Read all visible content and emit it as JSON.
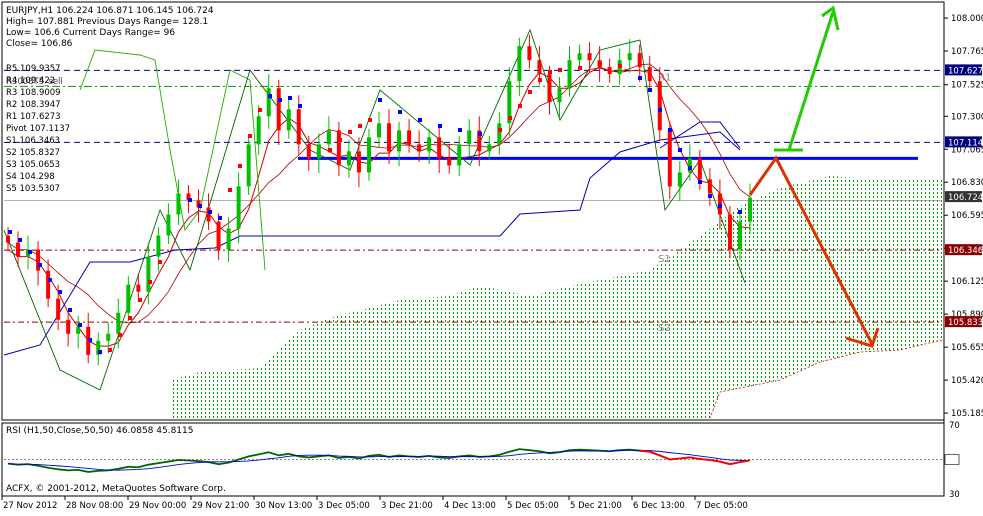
{
  "header": {
    "symbol_line": "EURJPY,H1  106.224 106.871 106.145 106.724",
    "high_line": "High= 107.881   Previous Days Range= 128.1",
    "low_line": "Low= 106.6    Current Days Range= 96",
    "close_line": "Close= 106.86"
  },
  "pivots_box": [
    {
      "label": "R5 109.9357"
    },
    {
      "label": "R4 109.422"
    },
    {
      "label": "R3 108.9009"
    },
    {
      "label": "R2 108.3947"
    },
    {
      "label": "R1 107.6273"
    },
    {
      "label": "Pivot 107.1137"
    },
    {
      "label": "S1 106.3463"
    },
    {
      "label": "S2 105.8327"
    },
    {
      "label": "S3 105.0653"
    },
    {
      "label": "S4 104.298"
    },
    {
      "label": "S5 103.5307"
    }
  ],
  "overlap_label": "R3008T5_sell",
  "copyright": "ACFX, © 2001-2012, MetaQuotes Software Corp.",
  "rsi_header": "RSI (H1,50,Close,50,50) 46.0858 45.8115",
  "colors": {
    "bull_candle": "#00c000",
    "bear_candle": "#ff0000",
    "support_line": "#0000ff",
    "up_arrow": "#22cc00",
    "down_arrow": "#dd3300",
    "cloud": "#009900",
    "label_blue_bg": "#00007f",
    "label_red_bg": "#8b0000"
  },
  "chart_data": {
    "type": "candlestick",
    "symbol": "EURJPY",
    "timeframe": "H1",
    "ylim": [
      105.15,
      108.1
    ],
    "x_ticks": [
      "27 Nov 2012",
      "28 Nov 08:00",
      "29 Nov 00:00",
      "29 Nov 21:00",
      "30 Nov 13:00",
      "3 Dec 05:00",
      "3 Dec 21:00",
      "4 Dec 13:00",
      "5 Dec 05:00",
      "5 Dec 21:00",
      "6 Dec 13:00",
      "7 Dec 05:00"
    ],
    "y_ticks": [
      "108.000",
      "107.765",
      "107.525",
      "107.300",
      "107.065",
      "106.830",
      "106.595",
      "106.360",
      "106.125",
      "105.890",
      "105.655",
      "105.420",
      "105.185"
    ],
    "price_labels": [
      {
        "text": "107.627",
        "value": 107.627,
        "style": "blue"
      },
      {
        "text": "107.114",
        "value": 107.114,
        "style": "blue"
      },
      {
        "text": "106.724",
        "value": 106.724,
        "style": "dark"
      },
      {
        "text": "106.346",
        "value": 106.346,
        "style": "red"
      },
      {
        "text": "105.833",
        "value": 105.833,
        "style": "red"
      }
    ],
    "levels": [
      {
        "name": "R1",
        "value": 107.627
      },
      {
        "name": "Pivot",
        "value": 107.114
      },
      {
        "name": "S1",
        "value": 106.346
      },
      {
        "name": "S2",
        "value": 105.833
      }
    ],
    "level_labels": [
      "R1",
      "S1",
      "S2"
    ],
    "support_line_value": 107.0,
    "close_series": [
      106.4,
      106.3,
      106.35,
      106.2,
      106.0,
      105.85,
      105.75,
      105.8,
      105.6,
      105.7,
      105.75,
      105.9,
      106.1,
      106.05,
      106.3,
      106.45,
      106.6,
      106.75,
      106.7,
      106.65,
      106.55,
      106.35,
      106.5,
      106.8,
      107.1,
      107.3,
      107.5,
      107.2,
      107.35,
      107.1,
      107.0,
      107.1,
      107.2,
      106.95,
      107.05,
      106.9,
      107.15,
      107.25,
      107.05,
      107.2,
      107.1,
      107.05,
      107.15,
      107.0,
      106.95,
      107.1,
      107.2,
      107.05,
      107.1,
      107.25,
      107.55,
      107.8,
      107.7,
      107.6,
      107.4,
      107.5,
      107.7,
      107.75,
      107.7,
      107.65,
      107.6,
      107.7,
      107.75,
      107.65,
      107.55,
      107.2,
      106.8,
      106.9,
      107.0,
      106.85,
      106.75,
      106.6,
      106.35,
      106.55,
      106.72
    ],
    "rsi": {
      "range": [
        30,
        70
      ],
      "ticks": [
        "70",
        "50",
        "30"
      ],
      "values": [
        46.0858,
        45.8115
      ]
    },
    "annotations": [
      {
        "type": "arrow",
        "direction": "up"
      },
      {
        "type": "arrow",
        "direction": "down"
      }
    ]
  }
}
